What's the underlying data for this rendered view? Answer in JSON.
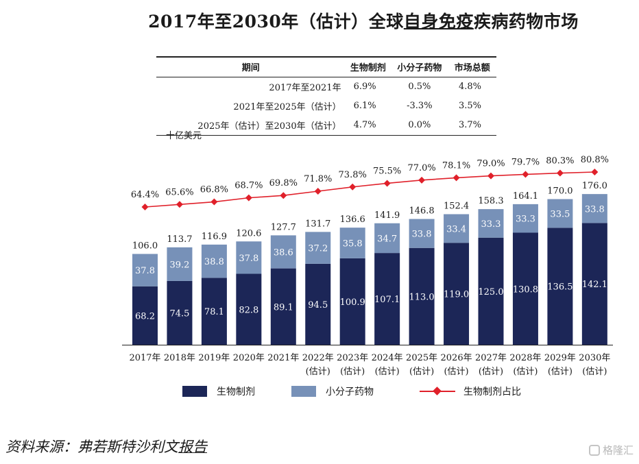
{
  "title": {
    "prefix": "2017年至2030年（估计）全球",
    "underlined": "自身免疫",
    "suffix": "疾病药物市场"
  },
  "cagr_table": {
    "headers": [
      "期间",
      "生物制剂",
      "小分子药物",
      "市场总额"
    ],
    "rows": [
      [
        "2017年至2021年",
        "6.9%",
        "0.5%",
        "4.8%"
      ],
      [
        "2021年至2025年（估计）",
        "6.1%",
        "-3.3%",
        "3.5%"
      ],
      [
        "2025年（估计）至2030年（估计）",
        "4.7%",
        "0.0%",
        "3.7%"
      ]
    ]
  },
  "unit_label": "十亿美元",
  "legend": {
    "biologics": "生物制剂",
    "small_molecule": "小分子药物",
    "share": "生物制剂占比"
  },
  "source": {
    "prefix": "资料来源：弗若斯特沙利文",
    "underlined": "报告"
  },
  "watermark": "格隆汇",
  "colors": {
    "biologics": "#1c2657",
    "small_molecule": "#7791b8",
    "share_line": "#e0202a"
  },
  "chart_data": {
    "type": "bar",
    "stacked": true,
    "categories": [
      "2017年",
      "2018年",
      "2019年",
      "2020年",
      "2021年",
      "2022年\n(估计)",
      "2023年\n(估计)",
      "2024年\n(估计)",
      "2025年\n(估计)",
      "2026年\n(估计)",
      "2027年\n(估计)",
      "2028年\n(估计)",
      "2029年\n(估计)",
      "2030年\n(估计)"
    ],
    "series": [
      {
        "name": "生物制剂",
        "values": [
          68.2,
          74.5,
          78.1,
          82.8,
          89.1,
          94.5,
          100.9,
          107.1,
          113.0,
          119.0,
          125.0,
          130.8,
          136.5,
          142.1
        ]
      },
      {
        "name": "小分子药物",
        "values": [
          37.8,
          39.2,
          38.8,
          37.8,
          38.6,
          37.2,
          35.8,
          34.7,
          33.8,
          33.4,
          33.3,
          33.3,
          33.5,
          33.8
        ]
      }
    ],
    "totals": [
      106.0,
      113.7,
      116.9,
      120.6,
      127.7,
      131.7,
      136.6,
      141.9,
      146.8,
      152.4,
      158.3,
      164.1,
      170.0,
      176.0
    ],
    "line_series": {
      "name": "生物制剂占比",
      "unit": "%",
      "values": [
        64.4,
        65.6,
        66.8,
        68.7,
        69.8,
        71.8,
        73.8,
        75.5,
        77.0,
        78.1,
        79.0,
        79.7,
        80.3,
        80.8
      ]
    },
    "ylim": [
      0,
      176
    ],
    "line_ylim": [
      0,
      100
    ],
    "grid": false,
    "legend_position": "bottom"
  }
}
